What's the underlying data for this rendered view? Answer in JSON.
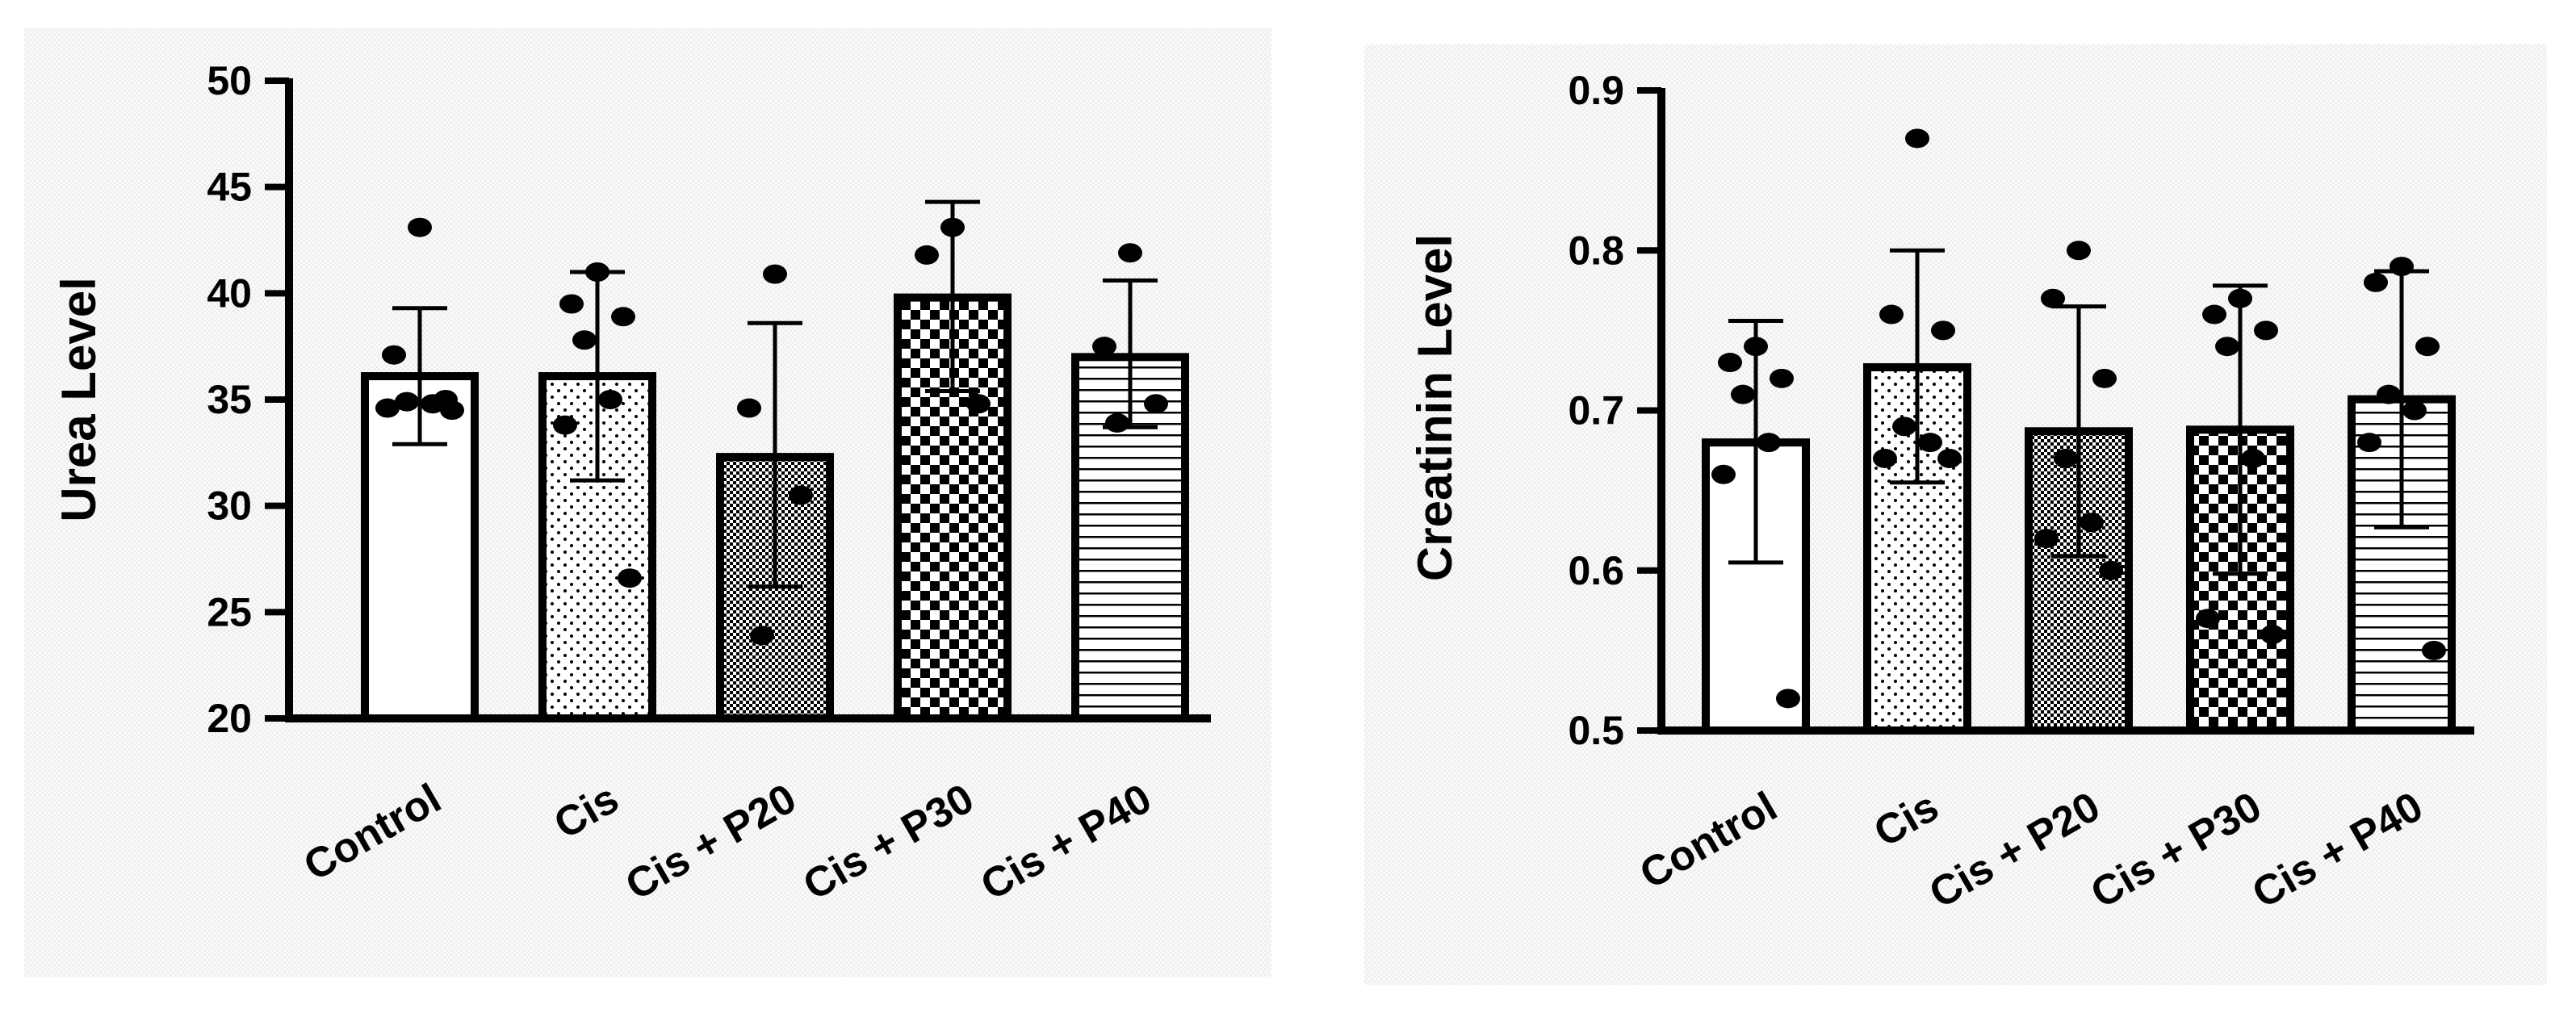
{
  "chart_data": [
    {
      "type": "bar",
      "ylabel": "Urea Level",
      "xlabel": "",
      "title": "",
      "ylim": [
        20,
        50
      ],
      "yticks": [
        20,
        25,
        30,
        35,
        40,
        45,
        50
      ],
      "grid": false,
      "categories": [
        "Control",
        "Cis",
        "Cis + P20",
        "Cis + P30",
        "Cis + P40"
      ],
      "values": [
        36.1,
        36.1,
        32.3,
        39.8,
        37.0
      ],
      "error_upper": [
        39.3,
        41.0,
        38.6,
        44.3,
        40.6
      ],
      "error_lower": [
        32.9,
        31.2,
        26.2,
        35.4,
        33.7
      ],
      "points": [
        [
          43.1,
          37.1,
          35.0,
          34.9,
          34.8,
          34.6,
          34.5
        ],
        [
          41.0,
          39.5,
          38.9,
          37.8,
          35.0,
          33.8,
          26.6
        ],
        [
          40.9,
          34.6,
          30.5,
          23.9
        ],
        [
          43.1,
          41.8,
          34.8
        ],
        [
          41.9,
          37.5,
          34.8,
          33.9
        ]
      ],
      "fill_patterns": [
        "open",
        "fine-dots",
        "fine-checker",
        "coarse-checker",
        "horizontal-stripes"
      ]
    },
    {
      "type": "bar",
      "ylabel": "Creatinin Level",
      "xlabel": "",
      "title": "",
      "ylim": [
        0.5,
        0.9
      ],
      "yticks": [
        0.5,
        0.6,
        0.7,
        0.8,
        0.9
      ],
      "grid": false,
      "categories": [
        "Control",
        "Cis",
        "Cis + P20",
        "Cis + P30",
        "Cis + P40"
      ],
      "values": [
        0.68,
        0.727,
        0.687,
        0.688,
        0.707
      ],
      "error_upper": [
        0.756,
        0.8,
        0.765,
        0.778,
        0.787
      ],
      "error_lower": [
        0.605,
        0.655,
        0.609,
        0.598,
        0.627
      ],
      "points": [
        [
          0.74,
          0.73,
          0.72,
          0.71,
          0.68,
          0.66,
          0.52
        ],
        [
          0.87,
          0.76,
          0.75,
          0.69,
          0.68,
          0.67,
          0.67
        ],
        [
          0.8,
          0.77,
          0.72,
          0.67,
          0.63,
          0.62,
          0.6
        ],
        [
          0.77,
          0.76,
          0.75,
          0.74,
          0.67,
          0.57,
          0.56
        ],
        [
          0.79,
          0.78,
          0.74,
          0.71,
          0.7,
          0.68,
          0.55
        ]
      ],
      "fill_patterns": [
        "open",
        "fine-dots",
        "fine-checker",
        "coarse-checker",
        "horizontal-stripes"
      ]
    }
  ]
}
